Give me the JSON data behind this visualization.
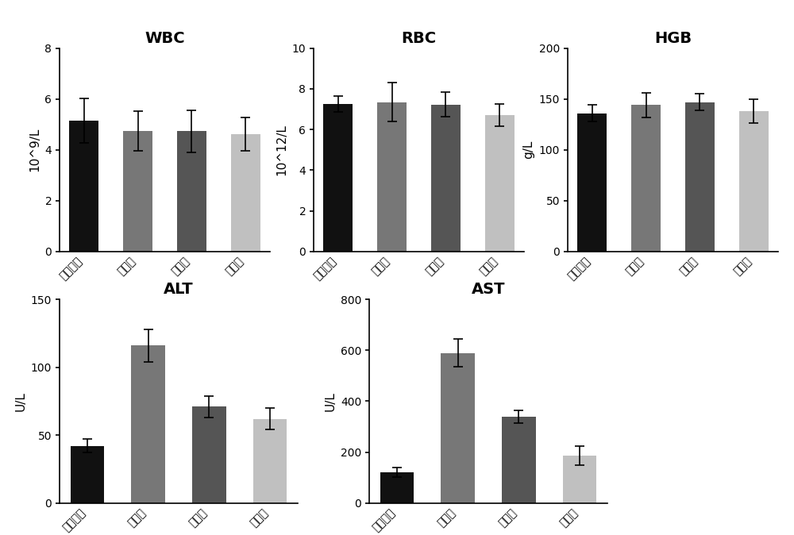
{
  "panels": [
    {
      "title": "WBC",
      "ylabel": "10^9/L",
      "ylim": [
        0,
        8
      ],
      "yticks": [
        0,
        2,
        4,
        6,
        8
      ],
      "categories": [
        "假手术组",
        "切肝组",
        "棉线组",
        "材料组"
      ],
      "values": [
        5.15,
        4.75,
        4.73,
        4.62
      ],
      "errors": [
        0.88,
        0.78,
        0.82,
        0.65
      ],
      "colors": [
        "#111111",
        "#777777",
        "#555555",
        "#c0c0c0"
      ]
    },
    {
      "title": "RBC",
      "ylabel": "10^12/L",
      "ylim": [
        0,
        10
      ],
      "yticks": [
        0,
        2,
        4,
        6,
        8,
        10
      ],
      "categories": [
        "假手术组",
        "切肝组",
        "棉线组",
        "材料组"
      ],
      "values": [
        7.25,
        7.35,
        7.22,
        6.72
      ],
      "errors": [
        0.38,
        0.95,
        0.6,
        0.55
      ],
      "colors": [
        "#111111",
        "#777777",
        "#555555",
        "#c0c0c0"
      ]
    },
    {
      "title": "HGB",
      "ylabel": "g/L",
      "ylim": [
        0,
        200
      ],
      "yticks": [
        0,
        50,
        100,
        150,
        200
      ],
      "categories": [
        "假手术组",
        "切肝组",
        "棉线组",
        "材料组"
      ],
      "values": [
        136,
        144,
        147,
        138
      ],
      "errors": [
        8,
        12,
        8,
        12
      ],
      "colors": [
        "#111111",
        "#777777",
        "#555555",
        "#c0c0c0"
      ]
    },
    {
      "title": "ALT",
      "ylabel": "U/L",
      "ylim": [
        0,
        150
      ],
      "yticks": [
        0,
        50,
        100,
        150
      ],
      "categories": [
        "假手术组",
        "切肝组",
        "棉线组",
        "材料组"
      ],
      "values": [
        42,
        116,
        71,
        62
      ],
      "errors": [
        5,
        12,
        8,
        8
      ],
      "colors": [
        "#111111",
        "#777777",
        "#555555",
        "#c0c0c0"
      ]
    },
    {
      "title": "AST",
      "ylabel": "U/L",
      "ylim": [
        0,
        800
      ],
      "yticks": [
        0,
        200,
        400,
        600,
        800
      ],
      "categories": [
        "假手术组",
        "切肝组",
        "棉线组",
        "材料组"
      ],
      "values": [
        120,
        590,
        340,
        185
      ],
      "errors": [
        18,
        55,
        25,
        38
      ],
      "colors": [
        "#111111",
        "#777777",
        "#555555",
        "#c0c0c0"
      ]
    }
  ],
  "bar_width": 0.55,
  "title_fontsize": 14,
  "label_fontsize": 11,
  "tick_fontsize": 10,
  "background_color": "#ffffff"
}
